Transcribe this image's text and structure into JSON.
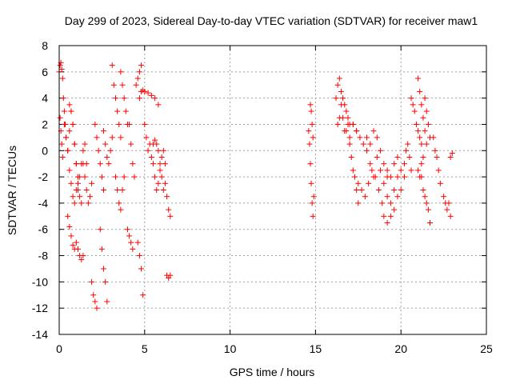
{
  "chart_data": {
    "type": "scatter",
    "title": "Day 299 of 2023, Sidereal Day-to-day VTEC variation (SDTVAR) for receiver maw1",
    "xlabel": "GPS time / hours",
    "ylabel": "SDTVAR / TECUs",
    "xlim": [
      0,
      25
    ],
    "ylim": [
      -14,
      8
    ],
    "xticks": [
      0,
      5,
      10,
      15,
      20,
      25
    ],
    "yticks": [
      -14,
      -12,
      -10,
      -8,
      -6,
      -4,
      -2,
      0,
      2,
      4,
      6,
      8
    ],
    "grid": true,
    "marker": "plus",
    "color": "#ff0000",
    "series": [
      {
        "name": "SDTVAR",
        "segments": [
          {
            "x": [
              0.0,
              0.05,
              0.1,
              0.15,
              0.2,
              0.25,
              0.3,
              0.35,
              0.4,
              0.5,
              0.6,
              0.7,
              0.8,
              0.9,
              1.0
            ],
            "y": [
              6.0,
              6.5,
              6.7,
              6.2,
              5.5,
              4.0,
              3.0,
              2.0,
              1.0,
              0.0,
              -1.5,
              -2.5,
              -3.5,
              -4.0,
              -3.0
            ]
          },
          {
            "x": [
              0.05,
              0.1,
              0.15,
              0.2,
              0.3,
              0.4,
              0.5,
              0.6,
              0.7,
              0.8,
              0.9,
              1.0,
              1.1
            ],
            "y": [
              2.5,
              1.5,
              0.5,
              -0.5,
              2.0,
              1.0,
              0.0,
              1.5,
              3.0,
              2.0,
              0.5,
              -1.0,
              -2.0
            ]
          },
          {
            "x": [
              0.6,
              0.7,
              0.8,
              0.9,
              1.0,
              1.1,
              1.2,
              1.3
            ],
            "y": [
              3.5,
              3.0,
              2.0,
              0.5,
              -1.0,
              -2.5,
              -3.5,
              -4.0
            ]
          },
          {
            "x": [
              0.5,
              0.6,
              0.7,
              0.8,
              0.9,
              1.0,
              1.1,
              1.2,
              1.3,
              1.4
            ],
            "y": [
              -5.0,
              -5.8,
              -6.5,
              -7.2,
              -7.5,
              -7.0,
              -7.5,
              -8.0,
              -8.3,
              -8.0
            ]
          },
          {
            "x": [
              1.1,
              1.2,
              1.3,
              1.4,
              1.5,
              1.6
            ],
            "y": [
              -3.0,
              -2.0,
              -1.0,
              0.0,
              0.5,
              -1.0
            ]
          },
          {
            "x": [
              1.4,
              1.5,
              1.6,
              1.7,
              1.8,
              1.9
            ],
            "y": [
              -1.0,
              -2.0,
              -3.0,
              -4.0,
              -3.5,
              -2.5
            ]
          },
          {
            "x": [
              1.9,
              2.0,
              2.1,
              2.2
            ],
            "y": [
              -10.0,
              -11.0,
              -11.5,
              -12.0
            ]
          },
          {
            "x": [
              2.1,
              2.2,
              2.3,
              2.4,
              2.5,
              2.6
            ],
            "y": [
              2.0,
              1.0,
              0.0,
              -1.0,
              -2.0,
              -3.0
            ]
          },
          {
            "x": [
              2.4,
              2.5,
              2.6,
              2.7,
              2.8
            ],
            "y": [
              -6.0,
              -7.5,
              -9.0,
              -10.0,
              -11.5
            ]
          },
          {
            "x": [
              2.6,
              2.7,
              2.8,
              2.9,
              3.0,
              3.1
            ],
            "y": [
              1.5,
              0.5,
              -0.5,
              -1.0,
              0.0,
              1.0
            ]
          },
          {
            "x": [
              3.1,
              3.2,
              3.3,
              3.4,
              3.5,
              3.6
            ],
            "y": [
              6.5,
              5.0,
              4.0,
              3.0,
              2.0,
              1.0
            ]
          },
          {
            "x": [
              3.3,
              3.4,
              3.5,
              3.6,
              3.7,
              3.8
            ],
            "y": [
              -2.0,
              -3.0,
              -4.0,
              -4.5,
              -3.0,
              -2.0
            ]
          },
          {
            "x": [
              3.6,
              3.7,
              3.8,
              3.9,
              4.0
            ],
            "y": [
              6.0,
              5.0,
              4.0,
              3.0,
              2.0
            ]
          },
          {
            "x": [
              4.0,
              4.1,
              4.2,
              4.3
            ],
            "y": [
              -6.0,
              -6.5,
              -7.0,
              -7.5
            ]
          },
          {
            "x": [
              4.1,
              4.2,
              4.3,
              4.4
            ],
            "y": [
              2.0,
              0.5,
              -1.0,
              -2.0
            ]
          },
          {
            "x": [
              4.5,
              4.6,
              4.7,
              4.8
            ],
            "y": [
              5.0,
              5.5,
              6.0,
              6.5
            ]
          },
          {
            "x": [
              4.6,
              4.7,
              4.8,
              4.9
            ],
            "y": [
              -7.0,
              -8.0,
              -9.0,
              -11.0
            ]
          },
          {
            "x": [
              4.7,
              4.8,
              4.9,
              5.0,
              5.2,
              5.4,
              5.6,
              5.8
            ],
            "y": [
              4.0,
              4.5,
              4.6,
              4.5,
              4.4,
              4.2,
              4.0,
              3.5
            ]
          },
          {
            "x": [
              5.0,
              5.1,
              5.2,
              5.3,
              5.4,
              5.5
            ],
            "y": [
              2.0,
              1.0,
              0.0,
              0.5,
              -0.5,
              -1.0
            ]
          },
          {
            "x": [
              5.5,
              5.6,
              5.7,
              5.8,
              5.9,
              6.0,
              6.1,
              6.2,
              6.3,
              6.4,
              6.5
            ],
            "y": [
              0.5,
              0.8,
              0.5,
              0.0,
              -1.0,
              -2.0,
              -3.0,
              -2.5,
              -3.5,
              -4.5,
              -5.0
            ]
          },
          {
            "x": [
              5.6,
              5.7,
              5.8,
              5.9,
              6.0,
              6.1,
              6.2
            ],
            "y": [
              -2.0,
              -3.0,
              -2.5,
              -1.5,
              -0.5,
              0.0,
              -1.0
            ]
          },
          {
            "x": [
              6.3,
              6.4,
              6.5
            ],
            "y": [
              -9.5,
              -9.7,
              -9.5
            ]
          },
          {
            "x": [
              14.6,
              14.65,
              14.7,
              14.75,
              14.8,
              14.85
            ],
            "y": [
              1.5,
              0.5,
              -1.0,
              -2.5,
              -4.0,
              -5.0
            ]
          },
          {
            "x": [
              14.7,
              14.75,
              14.8,
              14.85,
              14.9
            ],
            "y": [
              3.5,
              3.0,
              2.0,
              1.0,
              -3.5
            ]
          },
          {
            "x": [
              16.2,
              16.3,
              16.4,
              16.5,
              16.6,
              16.7,
              16.8,
              16.9,
              17.0
            ],
            "y": [
              4.0,
              5.0,
              5.5,
              4.5,
              4.0,
              3.5,
              3.0,
              2.5,
              2.0
            ]
          },
          {
            "x": [
              16.3,
              16.4,
              16.5,
              16.6,
              16.7,
              16.8,
              16.9,
              17.0,
              17.2,
              17.4
            ],
            "y": [
              2.0,
              2.5,
              3.5,
              2.5,
              1.5,
              1.5,
              2.0,
              1.0,
              2.0,
              1.5
            ]
          },
          {
            "x": [
              17.0,
              17.1,
              17.2,
              17.3,
              17.4,
              17.5
            ],
            "y": [
              0.5,
              -0.5,
              -1.5,
              -2.0,
              -3.0,
              -4.0
            ]
          },
          {
            "x": [
              17.2,
              17.4,
              17.6,
              17.8,
              18.0,
              18.2,
              18.4
            ],
            "y": [
              2.0,
              1.5,
              1.0,
              0.5,
              0.0,
              -1.0,
              -2.0
            ]
          },
          {
            "x": [
              17.5,
              17.7,
              17.9,
              18.1,
              18.3,
              18.5,
              18.7,
              18.9
            ],
            "y": [
              -2.5,
              -3.0,
              -3.5,
              -2.5,
              -1.5,
              -2.0,
              -3.0,
              -4.0
            ]
          },
          {
            "x": [
              18.0,
              18.2,
              18.4,
              18.6,
              18.8,
              19.0,
              19.2
            ],
            "y": [
              1.0,
              0.5,
              1.5,
              1.0,
              0.0,
              -1.0,
              -2.0
            ]
          },
          {
            "x": [
              18.6,
              18.8,
              19.0,
              19.2,
              19.4,
              19.6,
              19.8
            ],
            "y": [
              -0.5,
              -1.5,
              -2.5,
              -3.5,
              -4.0,
              -3.0,
              -2.0
            ]
          },
          {
            "x": [
              19.0,
              19.2,
              19.4,
              19.6,
              19.8,
              20.0
            ],
            "y": [
              -5.0,
              -5.5,
              -5.0,
              -4.5,
              -3.5,
              -3.0
            ]
          },
          {
            "x": [
              19.2,
              19.4,
              19.6,
              19.8,
              20.0,
              20.2
            ],
            "y": [
              -1.5,
              -2.0,
              -1.0,
              -0.5,
              -1.5,
              -2.0
            ]
          },
          {
            "x": [
              20.2,
              20.3,
              20.4,
              20.5,
              20.6
            ],
            "y": [
              -1.0,
              0.0,
              0.5,
              -0.5,
              -1.5
            ]
          },
          {
            "x": [
              20.6,
              20.7,
              20.8,
              20.9,
              21.0,
              21.1,
              21.2
            ],
            "y": [
              4.0,
              3.5,
              3.0,
              2.0,
              1.5,
              1.0,
              0.5
            ]
          },
          {
            "x": [
              21.0,
              21.1,
              21.2,
              21.3,
              21.4,
              21.5
            ],
            "y": [
              5.5,
              4.5,
              3.5,
              2.5,
              1.5,
              0.5
            ]
          },
          {
            "x": [
              21.0,
              21.1,
              21.2,
              21.3
            ],
            "y": [
              -1.5,
              -2.0,
              -1.0,
              -0.5
            ]
          },
          {
            "x": [
              21.2,
              21.3,
              21.4,
              21.5,
              21.6,
              21.7
            ],
            "y": [
              -2.0,
              -3.0,
              -3.5,
              -4.0,
              -4.5,
              -5.5
            ]
          },
          {
            "x": [
              21.4,
              21.5,
              21.6,
              21.7
            ],
            "y": [
              4.0,
              3.0,
              2.0,
              1.0
            ]
          },
          {
            "x": [
              21.9,
              22.0,
              22.1,
              22.2,
              22.3
            ],
            "y": [
              1.0,
              0.0,
              -0.5,
              -1.5,
              -2.5
            ]
          },
          {
            "x": [
              22.5,
              22.6,
              22.7,
              22.8,
              22.9
            ],
            "y": [
              -3.5,
              -4.0,
              -4.5,
              -4.0,
              -5.0
            ]
          },
          {
            "x": [
              22.9,
              23.0
            ],
            "y": [
              -0.5,
              -0.2
            ]
          }
        ]
      }
    ]
  }
}
